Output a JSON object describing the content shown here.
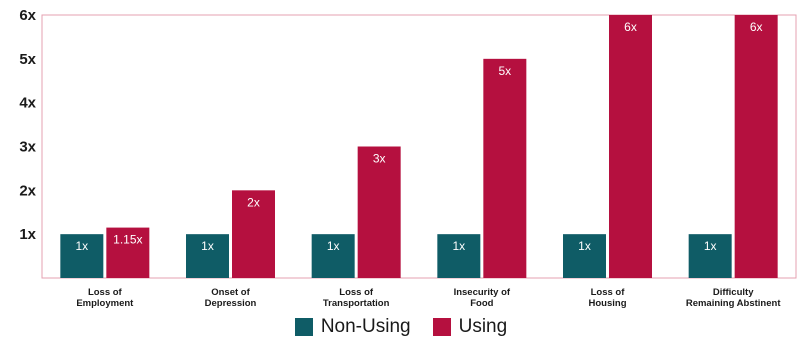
{
  "chart_data": {
    "type": "bar",
    "title": "",
    "xlabel": "",
    "ylabel": "",
    "ylim": [
      0,
      6
    ],
    "yticks": [
      1,
      2,
      3,
      4,
      5,
      6
    ],
    "ytick_labels": [
      "1x",
      "2x",
      "3x",
      "4x",
      "5x",
      "6x"
    ],
    "grid": false,
    "legend_position": "bottom",
    "categories": [
      [
        "Loss of",
        "Employment"
      ],
      [
        "Onset of",
        "Depression"
      ],
      [
        "Loss of",
        "Transportation"
      ],
      [
        "Insecurity of",
        "Food"
      ],
      [
        "Loss of",
        "Housing"
      ],
      [
        "Difficulty",
        "Remaining Abstinent"
      ]
    ],
    "series": [
      {
        "name": "Non-Using",
        "color": "#0f5c66",
        "values": [
          1,
          1,
          1,
          1,
          1,
          1
        ],
        "labels": [
          "1x",
          "1x",
          "1x",
          "1x",
          "1x",
          "1x"
        ]
      },
      {
        "name": "Using",
        "color": "#b5103f",
        "values": [
          1.15,
          2,
          3,
          5,
          6,
          6
        ],
        "labels": [
          "1.15x",
          "2x",
          "3x",
          "5x",
          "6x",
          "6x"
        ]
      }
    ],
    "frame_color": "#e6a0b0"
  }
}
